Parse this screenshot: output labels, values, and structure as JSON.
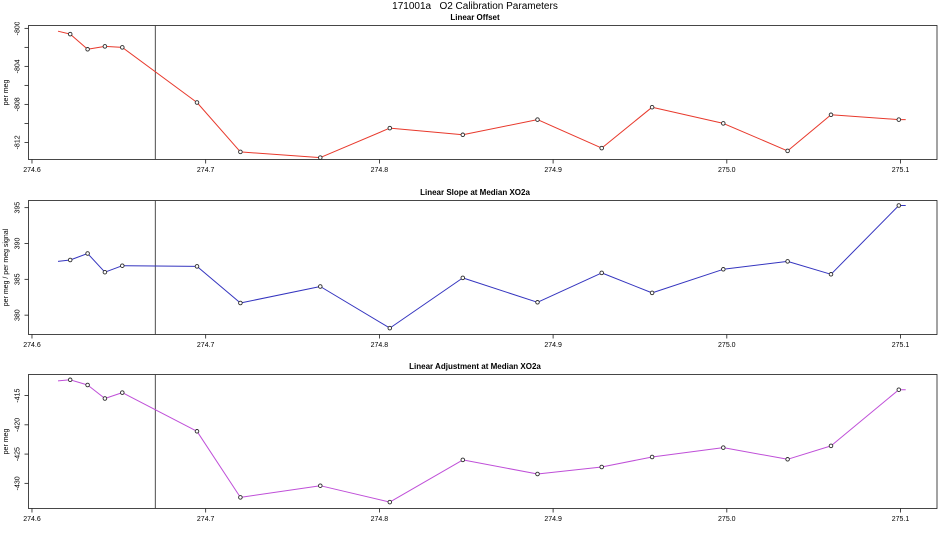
{
  "main_title": "171001a   O2 Calibration Parameters",
  "chart_data": [
    {
      "type": "line",
      "title": "Linear Offset",
      "ylabel": "per meg",
      "series_color": "#e8392c",
      "marker": "open-circle",
      "x": [
        274.622,
        274.632,
        274.642,
        274.652,
        274.695,
        274.72,
        274.766,
        274.806,
        274.848,
        274.891,
        274.928,
        274.957,
        274.998,
        275.035,
        275.06,
        275.099
      ],
      "y": [
        -800.6,
        -802.2,
        -801.9,
        -802.0,
        -807.8,
        -813.0,
        -813.6,
        -810.5,
        -811.2,
        -809.6,
        -812.6,
        -808.3,
        -810.0,
        -812.9,
        -809.1,
        -809.6
      ],
      "xlim": [
        274.598,
        275.121
      ],
      "ylim": [
        -813.8,
        -799.7
      ],
      "xticks": [
        {
          "v": 274.6,
          "label": "274.6"
        },
        {
          "v": 274.7,
          "label": "274.7"
        },
        {
          "v": 274.8,
          "label": "274.8"
        },
        {
          "v": 274.9,
          "label": "274.9"
        },
        {
          "v": 275.0,
          "label": "275.0"
        },
        {
          "v": 275.1,
          "label": "275.1"
        }
      ],
      "yticks": [
        {
          "v": -800,
          "label": "-800"
        },
        {
          "v": -802,
          "label": ""
        },
        {
          "v": -804,
          "label": "-804"
        },
        {
          "v": -806,
          "label": ""
        },
        {
          "v": -808,
          "label": "-808"
        },
        {
          "v": -810,
          "label": ""
        },
        {
          "v": -812,
          "label": "-812"
        }
      ],
      "vline_x": 274.671,
      "edge_points": {
        "left": {
          "x": 274.615,
          "y": -800.3
        },
        "right": {
          "x": 275.103,
          "y": -809.6
        }
      },
      "grid": "off",
      "legend": "none"
    },
    {
      "type": "line",
      "title": "Linear Slope at Median XO2a",
      "ylabel": "per meg / per meg signal",
      "series_color": "#3434bf",
      "marker": "open-circle",
      "x": [
        274.622,
        274.632,
        274.642,
        274.652,
        274.695,
        274.72,
        274.766,
        274.806,
        274.848,
        274.891,
        274.928,
        274.957,
        274.998,
        275.035,
        275.06,
        275.099
      ],
      "y": [
        387.7,
        388.6,
        386.0,
        386.9,
        386.8,
        381.7,
        384.0,
        378.2,
        385.2,
        381.8,
        385.9,
        383.1,
        386.4,
        387.5,
        385.7,
        395.3
      ],
      "xlim": [
        274.598,
        275.121
      ],
      "ylim": [
        377.3,
        396.0
      ],
      "xticks": [
        {
          "v": 274.6,
          "label": "274.6"
        },
        {
          "v": 274.7,
          "label": "274.7"
        },
        {
          "v": 274.8,
          "label": "274.8"
        },
        {
          "v": 274.9,
          "label": "274.9"
        },
        {
          "v": 275.0,
          "label": "275.0"
        },
        {
          "v": 275.1,
          "label": "275.1"
        }
      ],
      "yticks": [
        {
          "v": 380,
          "label": "380"
        },
        {
          "v": 385,
          "label": "385"
        },
        {
          "v": 390,
          "label": "390"
        },
        {
          "v": 395,
          "label": "395"
        }
      ],
      "vline_x": 274.671,
      "edge_points": {
        "left": {
          "x": 274.615,
          "y": 387.5
        },
        "right": {
          "x": 275.103,
          "y": 395.3
        }
      },
      "grid": "off",
      "legend": "none"
    },
    {
      "type": "line",
      "title": "Linear Adjustment at Median XO2a",
      "ylabel": "per meg",
      "series_color": "#bf4fd8",
      "marker": "open-circle",
      "x": [
        274.622,
        274.632,
        274.642,
        274.652,
        274.695,
        274.72,
        274.766,
        274.806,
        274.848,
        274.891,
        274.928,
        274.957,
        274.998,
        275.035,
        275.06,
        275.099
      ],
      "y": [
        -412.3,
        -413.2,
        -415.5,
        -414.5,
        -421.1,
        -432.4,
        -430.4,
        -433.2,
        -426.0,
        -428.4,
        -427.2,
        -425.5,
        -423.9,
        -425.9,
        -423.6,
        -414.0
      ],
      "xlim": [
        274.598,
        275.121
      ],
      "ylim": [
        -434.3,
        -411.4
      ],
      "xticks": [
        {
          "v": 274.6,
          "label": "274.6"
        },
        {
          "v": 274.7,
          "label": "274.7"
        },
        {
          "v": 274.8,
          "label": "274.8"
        },
        {
          "v": 274.9,
          "label": "274.9"
        },
        {
          "v": 275.0,
          "label": "275.0"
        },
        {
          "v": 275.1,
          "label": "275.1"
        }
      ],
      "yticks": [
        {
          "v": -415,
          "label": "-415"
        },
        {
          "v": -420,
          "label": "-420"
        },
        {
          "v": -425,
          "label": "-425"
        },
        {
          "v": -430,
          "label": "-430"
        }
      ],
      "vline_x": 274.671,
      "edge_points": {
        "left": {
          "x": 274.615,
          "y": -412.5
        },
        "right": {
          "x": 275.103,
          "y": -414.0
        }
      },
      "grid": "off",
      "legend": "none"
    }
  ]
}
